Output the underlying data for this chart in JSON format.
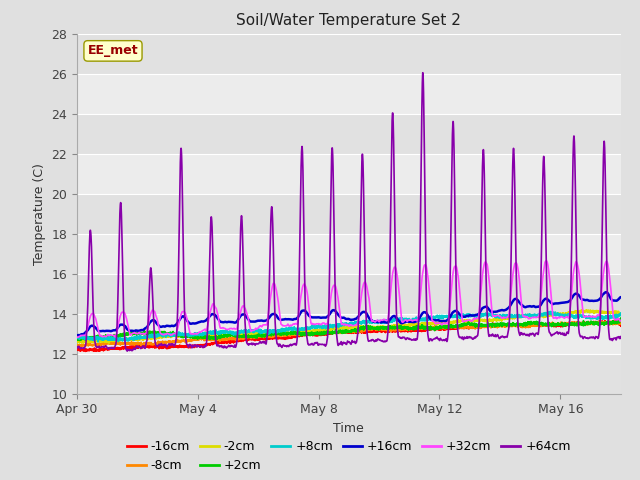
{
  "title": "Soil/Water Temperature Set 2",
  "xlabel": "Time",
  "ylabel": "Temperature (C)",
  "xlim": [
    0,
    18
  ],
  "ylim": [
    10,
    28
  ],
  "yticks": [
    10,
    12,
    14,
    16,
    18,
    20,
    22,
    24,
    26,
    28
  ],
  "xtick_positions": [
    0,
    4,
    8,
    12,
    16
  ],
  "xtick_labels": [
    "Apr 30",
    "May 4",
    "May 8",
    "May 12",
    "May 16"
  ],
  "bg_color": "#e0e0e0",
  "plot_bg_color": "#ececec",
  "grid_color": "#ffffff",
  "annotation_text": "EE_met",
  "annotation_box_color": "#ffffcc",
  "annotation_text_color": "#990000",
  "series": {
    "-16cm": {
      "color": "#ff0000",
      "lw": 1.2
    },
    "-8cm": {
      "color": "#ff8800",
      "lw": 1.2
    },
    "-2cm": {
      "color": "#dddd00",
      "lw": 1.2
    },
    "+2cm": {
      "color": "#00cc00",
      "lw": 1.2
    },
    "+8cm": {
      "color": "#00cccc",
      "lw": 1.2
    },
    "+16cm": {
      "color": "#0000cc",
      "lw": 1.8
    },
    "+32cm": {
      "color": "#ff44ff",
      "lw": 1.2
    },
    "+64cm": {
      "color": "#8800aa",
      "lw": 1.2
    }
  }
}
